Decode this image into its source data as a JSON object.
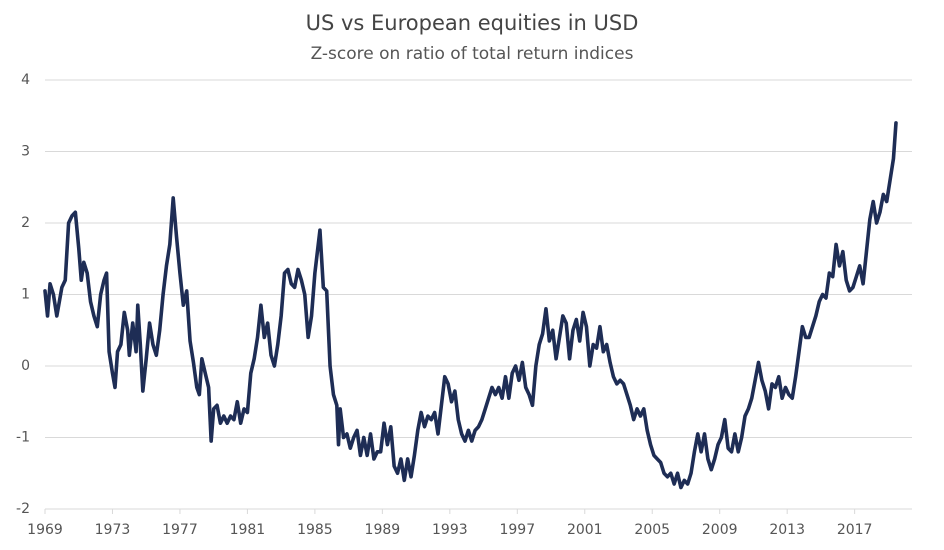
{
  "chart_data": {
    "type": "line",
    "title": "US vs European equities in USD",
    "subtitle": "Z-score on ratio of total return indices",
    "xlim": [
      1969,
      2020.4
    ],
    "xticks": [
      1969,
      1973,
      1977,
      1981,
      1985,
      1989,
      1993,
      1997,
      2001,
      2005,
      2009,
      2013,
      2017
    ],
    "ylim": [
      -2,
      4
    ],
    "yticks": [
      -2,
      -1,
      0,
      1,
      2,
      3,
      4
    ],
    "grid": true,
    "x": [
      1969.0,
      1969.15,
      1969.3,
      1969.5,
      1969.7,
      1970.0,
      1970.2,
      1970.4,
      1970.6,
      1970.8,
      1971.0,
      1971.15,
      1971.3,
      1971.5,
      1971.7,
      1971.9,
      1972.1,
      1972.3,
      1972.5,
      1972.65,
      1972.8,
      1973.0,
      1973.15,
      1973.3,
      1973.5,
      1973.7,
      1973.9,
      1974.0,
      1974.2,
      1974.4,
      1974.5,
      1974.65,
      1974.8,
      1975.0,
      1975.2,
      1975.4,
      1975.6,
      1975.8,
      1976.0,
      1976.2,
      1976.4,
      1976.6,
      1976.8,
      1977.0,
      1977.2,
      1977.4,
      1977.6,
      1977.8,
      1978.0,
      1978.15,
      1978.3,
      1978.5,
      1978.7,
      1978.85,
      1979.0,
      1979.2,
      1979.4,
      1979.6,
      1979.8,
      1980.0,
      1980.2,
      1980.4,
      1980.6,
      1980.8,
      1981.0,
      1981.2,
      1981.4,
      1981.6,
      1981.8,
      1982.0,
      1982.2,
      1982.4,
      1982.6,
      1982.8,
      1983.0,
      1983.2,
      1983.4,
      1983.6,
      1983.8,
      1984.0,
      1984.2,
      1984.4,
      1984.6,
      1984.8,
      1985.0,
      1985.3,
      1985.5,
      1985.7,
      1985.9,
      1986.1,
      1986.3,
      1986.4,
      1986.5,
      1986.7,
      1986.9,
      1987.1,
      1987.3,
      1987.5,
      1987.7,
      1987.9,
      1988.1,
      1988.3,
      1988.5,
      1988.7,
      1988.9,
      1989.1,
      1989.3,
      1989.5,
      1989.7,
      1989.9,
      1990.1,
      1990.3,
      1990.5,
      1990.7,
      1990.9,
      1991.1,
      1991.3,
      1991.5,
      1991.7,
      1991.9,
      1992.1,
      1992.3,
      1992.5,
      1992.7,
      1992.9,
      1993.1,
      1993.3,
      1993.5,
      1993.7,
      1993.9,
      1994.1,
      1994.3,
      1994.5,
      1994.7,
      1994.9,
      1995.1,
      1995.3,
      1995.5,
      1995.7,
      1995.9,
      1996.1,
      1996.3,
      1996.5,
      1996.7,
      1996.9,
      1997.1,
      1997.3,
      1997.5,
      1997.7,
      1997.9,
      1998.1,
      1998.3,
      1998.5,
      1998.7,
      1998.9,
      1999.1,
      1999.3,
      1999.5,
      1999.7,
      1999.9,
      2000.1,
      2000.3,
      2000.5,
      2000.7,
      2000.9,
      2001.1,
      2001.3,
      2001.5,
      2001.7,
      2001.9,
      2002.1,
      2002.3,
      2002.5,
      2002.7,
      2002.9,
      2003.1,
      2003.3,
      2003.5,
      2003.7,
      2003.9,
      2004.1,
      2004.3,
      2004.5,
      2004.7,
      2004.9,
      2005.1,
      2005.3,
      2005.5,
      2005.7,
      2005.9,
      2006.1,
      2006.3,
      2006.5,
      2006.7,
      2006.9,
      2007.1,
      2007.3,
      2007.5,
      2007.7,
      2007.9,
      2008.1,
      2008.3,
      2008.5,
      2008.7,
      2008.9,
      2009.1,
      2009.3,
      2009.5,
      2009.7,
      2009.9,
      2010.1,
      2010.3,
      2010.5,
      2010.7,
      2010.9,
      2011.1,
      2011.3,
      2011.5,
      2011.7,
      2011.9,
      2012.1,
      2012.3,
      2012.5,
      2012.7,
      2012.9,
      2013.1,
      2013.3,
      2013.5,
      2013.7,
      2013.9,
      2014.1,
      2014.3,
      2014.5,
      2014.7,
      2014.9,
      2015.1,
      2015.3,
      2015.5,
      2015.7,
      2015.9,
      2016.1,
      2016.3,
      2016.5,
      2016.7,
      2016.9,
      2017.1,
      2017.3,
      2017.5,
      2017.7,
      2017.9,
      2018.1,
      2018.3,
      2018.5,
      2018.7,
      2018.9,
      2019.1,
      2019.3,
      2019.45
    ],
    "series": [
      {
        "color": "#1e2d55",
        "values": [
          1.05,
          0.7,
          1.15,
          1.0,
          0.7,
          1.1,
          1.2,
          2.0,
          2.1,
          2.15,
          1.65,
          1.2,
          1.45,
          1.3,
          0.9,
          0.7,
          0.55,
          1.0,
          1.2,
          1.3,
          0.2,
          -0.1,
          -0.3,
          0.2,
          0.3,
          0.75,
          0.5,
          0.15,
          0.6,
          0.2,
          0.85,
          0.3,
          -0.35,
          0.1,
          0.6,
          0.3,
          0.15,
          0.5,
          1.0,
          1.4,
          1.7,
          2.35,
          1.8,
          1.3,
          0.85,
          1.05,
          0.35,
          0.05,
          -0.3,
          -0.4,
          0.1,
          -0.1,
          -0.3,
          -1.05,
          -0.6,
          -0.55,
          -0.8,
          -0.7,
          -0.8,
          -0.7,
          -0.75,
          -0.5,
          -0.8,
          -0.6,
          -0.65,
          -0.1,
          0.1,
          0.4,
          0.85,
          0.4,
          0.6,
          0.15,
          0.0,
          0.3,
          0.7,
          1.3,
          1.35,
          1.15,
          1.1,
          1.35,
          1.2,
          1.0,
          0.4,
          0.7,
          1.3,
          1.9,
          1.1,
          1.05,
          0.0,
          -0.4,
          -0.55,
          -1.1,
          -0.6,
          -1.0,
          -0.95,
          -1.15,
          -1.0,
          -0.9,
          -1.25,
          -1.0,
          -1.25,
          -0.95,
          -1.3,
          -1.2,
          -1.2,
          -0.8,
          -1.1,
          -0.85,
          -1.4,
          -1.5,
          -1.3,
          -1.6,
          -1.3,
          -1.55,
          -1.25,
          -0.9,
          -0.65,
          -0.85,
          -0.7,
          -0.75,
          -0.65,
          -0.95,
          -0.55,
          -0.15,
          -0.25,
          -0.5,
          -0.35,
          -0.75,
          -0.95,
          -1.05,
          -0.9,
          -1.05,
          -0.9,
          -0.85,
          -0.75,
          -0.6,
          -0.45,
          -0.3,
          -0.4,
          -0.3,
          -0.45,
          -0.15,
          -0.45,
          -0.1,
          0.0,
          -0.2,
          0.05,
          -0.3,
          -0.4,
          -0.55,
          0.0,
          0.3,
          0.45,
          0.8,
          0.35,
          0.5,
          0.1,
          0.4,
          0.7,
          0.6,
          0.1,
          0.5,
          0.65,
          0.35,
          0.75,
          0.55,
          0.0,
          0.3,
          0.25,
          0.55,
          0.2,
          0.3,
          0.05,
          -0.15,
          -0.25,
          -0.2,
          -0.25,
          -0.4,
          -0.55,
          -0.75,
          -0.6,
          -0.7,
          -0.6,
          -0.9,
          -1.1,
          -1.25,
          -1.3,
          -1.35,
          -1.5,
          -1.55,
          -1.5,
          -1.65,
          -1.5,
          -1.7,
          -1.6,
          -1.65,
          -1.5,
          -1.2,
          -0.95,
          -1.2,
          -0.95,
          -1.3,
          -1.45,
          -1.3,
          -1.1,
          -1.0,
          -0.75,
          -1.15,
          -1.2,
          -0.95,
          -1.2,
          -1.0,
          -0.7,
          -0.6,
          -0.45,
          -0.2,
          0.05,
          -0.2,
          -0.35,
          -0.6,
          -0.25,
          -0.3,
          -0.15,
          -0.45,
          -0.3,
          -0.4,
          -0.45,
          -0.15,
          0.2,
          0.55,
          0.4,
          0.4,
          0.55,
          0.7,
          0.9,
          1.0,
          0.95,
          1.3,
          1.25,
          1.7,
          1.4,
          1.6,
          1.2,
          1.05,
          1.1,
          1.25,
          1.4,
          1.15,
          1.6,
          2.05,
          2.3,
          2.0,
          2.15,
          2.4,
          2.3,
          2.6,
          2.9,
          3.4
        ]
      }
    ]
  }
}
